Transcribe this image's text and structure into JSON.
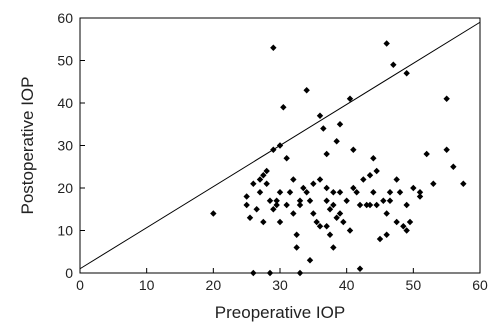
{
  "chart_data": {
    "type": "scatter",
    "title": "",
    "xlabel": "Preoperative IOP",
    "ylabel": "Postoperative IOP",
    "xlim": [
      0,
      60
    ],
    "ylim": [
      0,
      60
    ],
    "xticks": [
      "0",
      "10",
      "20",
      "30",
      "40",
      "50",
      "60"
    ],
    "yticks": [
      "0",
      "10",
      "20",
      "30",
      "40",
      "50",
      "60"
    ],
    "grid": false,
    "marker": "diamond",
    "marker_color": "#000000",
    "reference_line": {
      "x": [
        0,
        60
      ],
      "y": [
        1,
        59
      ]
    },
    "series": [
      {
        "points": [
          [
            20,
            14
          ],
          [
            25,
            16
          ],
          [
            25,
            18
          ],
          [
            25.5,
            13
          ],
          [
            26,
            21
          ],
          [
            26,
            0
          ],
          [
            26.5,
            15
          ],
          [
            27,
            19
          ],
          [
            27,
            22
          ],
          [
            27.5,
            12
          ],
          [
            27.5,
            23
          ],
          [
            28,
            24
          ],
          [
            28,
            21
          ],
          [
            28.5,
            17
          ],
          [
            28.5,
            0
          ],
          [
            29,
            15
          ],
          [
            29,
            29
          ],
          [
            29,
            53
          ],
          [
            29.5,
            16
          ],
          [
            29.5,
            17
          ],
          [
            30,
            12
          ],
          [
            30,
            19
          ],
          [
            30,
            30
          ],
          [
            30.5,
            39
          ],
          [
            31,
            16
          ],
          [
            31,
            27
          ],
          [
            31.5,
            19
          ],
          [
            32,
            22
          ],
          [
            32,
            14
          ],
          [
            32.5,
            6
          ],
          [
            32.5,
            9
          ],
          [
            33,
            16
          ],
          [
            33,
            17
          ],
          [
            33,
            0
          ],
          [
            33.5,
            20
          ],
          [
            34,
            19
          ],
          [
            34,
            43
          ],
          [
            34.5,
            17
          ],
          [
            34.5,
            3
          ],
          [
            35,
            14
          ],
          [
            35,
            21
          ],
          [
            35.5,
            12
          ],
          [
            36,
            22
          ],
          [
            36,
            11
          ],
          [
            36,
            37
          ],
          [
            36.5,
            34
          ],
          [
            37,
            17
          ],
          [
            37,
            20
          ],
          [
            37,
            28
          ],
          [
            37,
            11
          ],
          [
            37.5,
            15
          ],
          [
            37.5,
            9
          ],
          [
            38,
            19
          ],
          [
            38,
            6
          ],
          [
            38,
            16
          ],
          [
            38.5,
            13
          ],
          [
            38.5,
            31
          ],
          [
            39,
            19
          ],
          [
            39,
            14
          ],
          [
            39,
            35
          ],
          [
            39.5,
            12
          ],
          [
            40,
            17
          ],
          [
            40.5,
            10
          ],
          [
            40.5,
            41
          ],
          [
            41,
            20
          ],
          [
            41,
            29
          ],
          [
            41.5,
            19
          ],
          [
            42,
            16
          ],
          [
            42,
            1
          ],
          [
            42.5,
            22
          ],
          [
            43,
            16
          ],
          [
            43.5,
            23
          ],
          [
            43.5,
            16
          ],
          [
            44,
            27
          ],
          [
            44,
            19
          ],
          [
            44.5,
            16
          ],
          [
            44.5,
            24
          ],
          [
            45,
            8
          ],
          [
            45.5,
            17
          ],
          [
            46,
            14
          ],
          [
            46,
            9
          ],
          [
            46,
            54
          ],
          [
            46.5,
            19
          ],
          [
            46.5,
            17
          ],
          [
            47,
            49
          ],
          [
            47.5,
            22
          ],
          [
            47.5,
            12
          ],
          [
            48,
            19
          ],
          [
            48.5,
            11
          ],
          [
            49,
            47
          ],
          [
            49,
            16
          ],
          [
            49,
            10
          ],
          [
            49.5,
            12
          ],
          [
            50,
            20
          ],
          [
            51,
            19
          ],
          [
            51,
            18
          ],
          [
            52,
            28
          ],
          [
            53,
            21
          ],
          [
            55,
            41
          ],
          [
            55,
            29
          ],
          [
            56,
            25
          ],
          [
            57.5,
            21
          ]
        ]
      }
    ]
  }
}
